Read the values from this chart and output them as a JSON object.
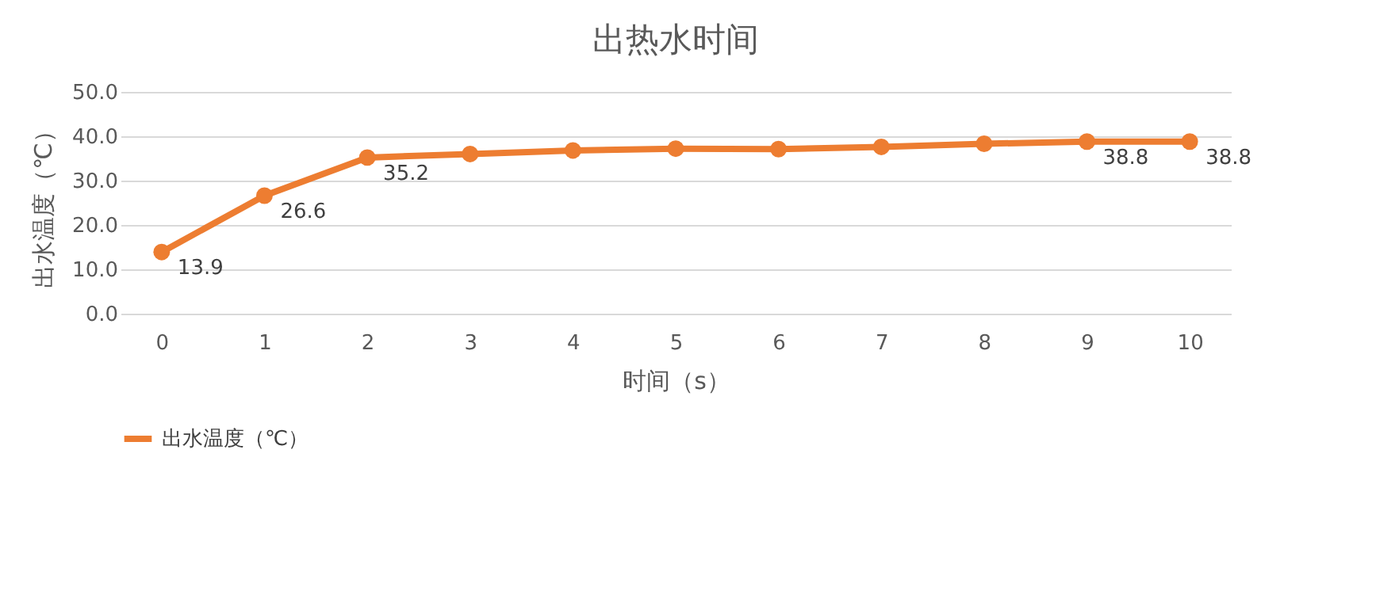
{
  "chart_data": {
    "type": "line",
    "title": "出热水时间",
    "xlabel": "时间（s）",
    "ylabel": "出水温度（℃）",
    "categories": [
      "0",
      "1",
      "2",
      "3",
      "4",
      "5",
      "6",
      "7",
      "8",
      "9",
      "10"
    ],
    "series": [
      {
        "name": "出水温度（℃）",
        "color": "#ed7d31",
        "values": [
          13.9,
          26.6,
          35.2,
          36.0,
          36.8,
          37.2,
          37.1,
          37.6,
          38.3,
          38.8,
          38.8
        ],
        "value_labels": [
          "13.9",
          "26.6",
          "35.2",
          null,
          null,
          null,
          null,
          null,
          null,
          "38.8",
          "38.8"
        ]
      }
    ],
    "ylim": [
      0,
      50
    ],
    "yticks": [
      {
        "value": 0,
        "label": "0.0"
      },
      {
        "value": 10,
        "label": "10.0"
      },
      {
        "value": 20,
        "label": "20.0"
      },
      {
        "value": 30,
        "label": "30.0"
      },
      {
        "value": 40,
        "label": "40.0"
      },
      {
        "value": 50,
        "label": "50.0"
      }
    ],
    "grid": "y",
    "legend": "bottom",
    "marker": "circle",
    "line_style": "solid"
  }
}
